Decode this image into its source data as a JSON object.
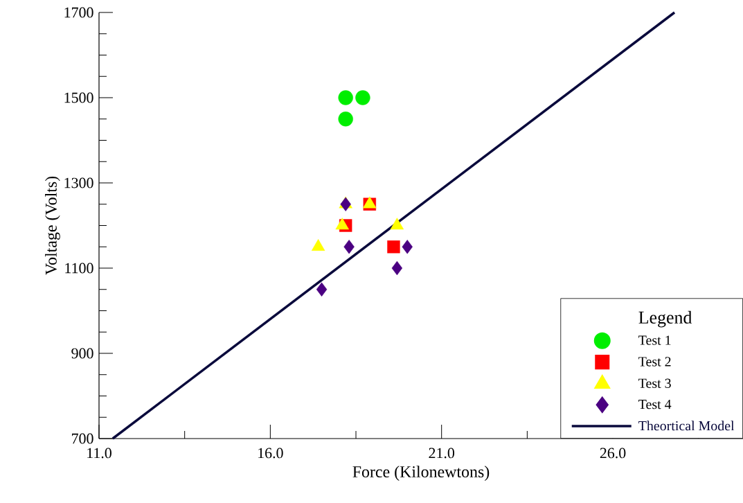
{
  "chart_data": {
    "type": "scatter",
    "xlabel": "Force (Kilonewtons)",
    "ylabel": "Voltage (Volts)",
    "legend_title": "Legend",
    "legend": "bottom right",
    "grid": false,
    "xlim": [
      11,
      29.8
    ],
    "ylim": [
      700,
      1700
    ],
    "xticks": [
      {
        "value": 11,
        "label": "11.0"
      },
      {
        "value": 13.5,
        "label": null
      },
      {
        "value": 16,
        "label": "16.0"
      },
      {
        "value": 18.5,
        "label": null
      },
      {
        "value": 21,
        "label": "21.0"
      },
      {
        "value": 23.5,
        "label": null
      },
      {
        "value": 26,
        "label": "26.0"
      },
      {
        "value": 28.5,
        "label": null
      }
    ],
    "yticks": [
      700,
      {
        "value": 750,
        "label": null
      },
      {
        "value": 800,
        "label": null
      },
      {
        "value": 850,
        "label": null
      },
      900,
      {
        "value": 950,
        "label": null
      },
      {
        "value": 1000,
        "label": null
      },
      {
        "value": 1050,
        "label": null
      },
      1100,
      {
        "value": 1150,
        "label": null
      },
      {
        "value": 1200,
        "label": null
      },
      {
        "value": 1250,
        "label": null
      },
      1300,
      {
        "value": 1350,
        "label": null
      },
      {
        "value": 1400,
        "label": null
      },
      {
        "value": 1450,
        "label": null
      },
      1500,
      {
        "value": 1550,
        "label": null
      },
      {
        "value": 1600,
        "label": null
      },
      {
        "value": 1650,
        "label": null
      },
      1700
    ],
    "series": [
      {
        "name": "Test 1",
        "color": "#00ee00",
        "marker": "circle",
        "x": [
          18.2,
          18.7,
          18.2
        ],
        "values": [
          1500,
          1500,
          1450
        ]
      },
      {
        "name": "Test 2",
        "color": "#ff0000",
        "marker": "square",
        "x": [
          18.2,
          18.9,
          19.6
        ],
        "values": [
          1200,
          1250,
          1150
        ]
      },
      {
        "name": "Test 3",
        "color": "#ffff00",
        "marker": "triangle",
        "x": [
          17.4,
          18.1,
          18.2,
          18.9,
          19.7
        ],
        "values": [
          1150,
          1200,
          1250,
          1250,
          1200
        ]
      },
      {
        "name": "Test 4",
        "color": "#4b0082",
        "marker": "diamond",
        "x": [
          18.2,
          18.3,
          17.5,
          19.7,
          20.0
        ],
        "values": [
          1250,
          1150,
          1050,
          1100,
          1150
        ]
      },
      {
        "name": "Theortical Model",
        "type": "line",
        "color": "#0a0a3c",
        "marker": "none",
        "line_style": "solid",
        "x": [
          11.4,
          27.8
        ],
        "values": [
          700,
          1700
        ]
      }
    ]
  }
}
